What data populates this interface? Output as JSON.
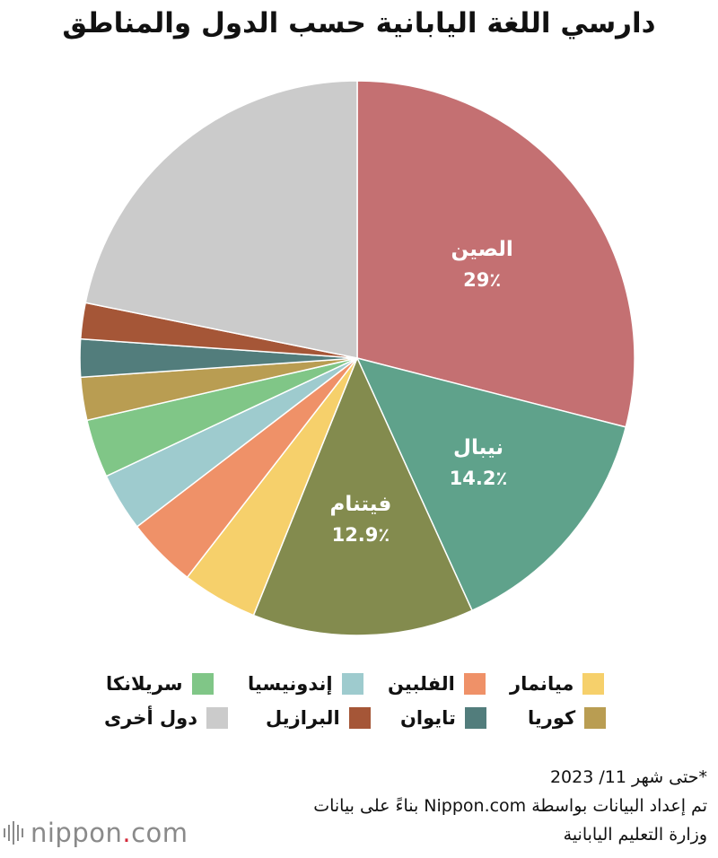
{
  "chart_data": {
    "type": "pie",
    "title": "دارسي اللغة اليابانية حسب الدول والمناطق",
    "slices": [
      {
        "name": "الصين",
        "value": 29,
        "color": "#c47072",
        "label": "الصين",
        "value_text": "29٪"
      },
      {
        "name": "نيبال",
        "value": 14.2,
        "color": "#5fa28b",
        "label": "نيبال",
        "value_text": "14.2٪"
      },
      {
        "name": "فيتنام",
        "value": 12.9,
        "color": "#838b4e",
        "label": "فيتنام",
        "value_text": "12.9٪"
      },
      {
        "name": "ميانمار",
        "value": 4.4,
        "color": "#f6d06b"
      },
      {
        "name": "الفلبين",
        "value": 4.1,
        "color": "#ef9168"
      },
      {
        "name": "إندونيسيا",
        "value": 3.4,
        "color": "#9ecbce"
      },
      {
        "name": "سريلانكا",
        "value": 3.4,
        "color": "#80c687"
      },
      {
        "name": "كوريا",
        "value": 2.5,
        "color": "#b99d52"
      },
      {
        "name": "تايوان",
        "value": 2.2,
        "color": "#527d7c"
      },
      {
        "name": "البرازيل",
        "value": 2.1,
        "color": "#a55637"
      },
      {
        "name": "دول أخرى",
        "value": 21.8,
        "color": "#cbcbcb"
      }
    ],
    "legend": {
      "placement": "bottom",
      "entries": [
        "ميانمار",
        "الفلبين",
        "إندونيسيا",
        "سريلانكا",
        "كوريا",
        "تايوان",
        "البرازيل",
        "دول أخرى"
      ]
    }
  },
  "notes": {
    "date": "*حتى شهر 11/ 2023",
    "source_line1": "تم إعداد البيانات بواسطة Nippon.com بناءً على بيانات",
    "source_line2": "وزارة التعليم اليابانية"
  },
  "brand": {
    "name": "nippon",
    "dot": ".",
    "suffix": "com"
  }
}
